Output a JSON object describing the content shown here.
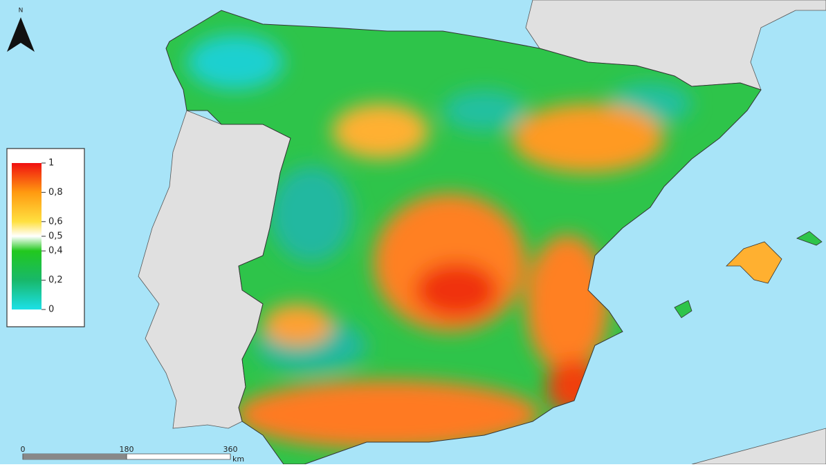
{
  "north_arrow": {
    "label": "N"
  },
  "legend": {
    "ticks": [
      1,
      {
        "value": 0.8,
        "label": "0,8"
      },
      {
        "value": 0.6,
        "label": "0,6"
      },
      {
        "value": 0.5,
        "label": "0,5"
      },
      {
        "value": 0.4,
        "label": "0,4"
      },
      {
        "value": 0.2,
        "label": "0,2"
      },
      0
    ],
    "color_stops": [
      {
        "value": 0,
        "color": "#1ce0e8"
      },
      {
        "value": 0.2,
        "color": "#18b86a"
      },
      {
        "value": 0.4,
        "color": "#22c81e"
      },
      {
        "value": 0.5,
        "color": "#ffffff"
      },
      {
        "value": 0.6,
        "color": "#ffe040"
      },
      {
        "value": 0.8,
        "color": "#ff9a10"
      },
      {
        "value": 1,
        "color": "#f01010"
      }
    ]
  },
  "scale_bar": {
    "ticks": [
      0,
      180,
      360
    ],
    "unit": "km"
  }
}
